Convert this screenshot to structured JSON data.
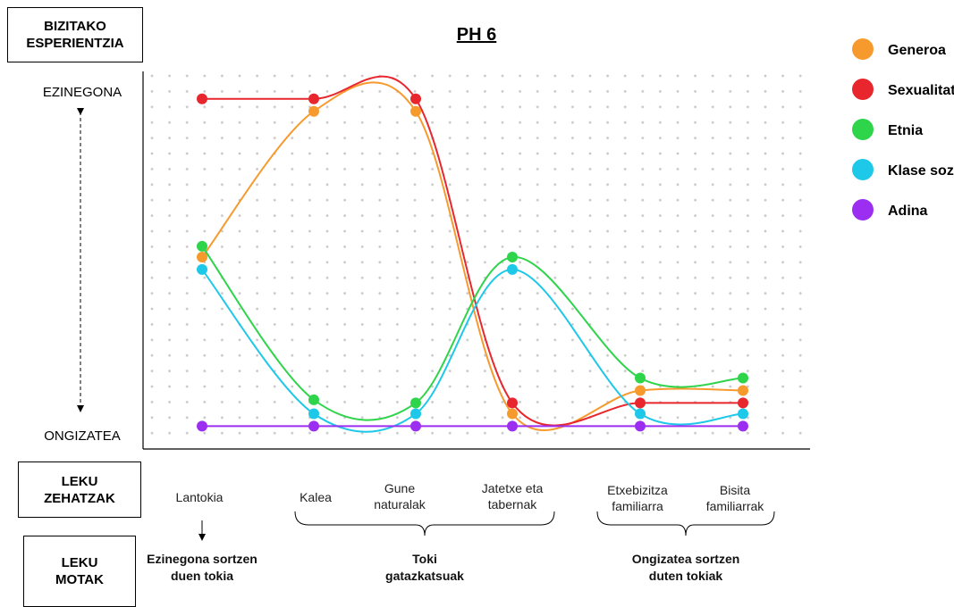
{
  "chart_data": {
    "type": "line",
    "title": "PH 6",
    "y_axis_label": "BIZITAKO ESPERIENTZIA",
    "y_top_label": "EZINEGONA",
    "y_bottom_label": "ONGIZATEA",
    "x_axis_label": "LEKU ZEHATZAK",
    "group_axis_label": "LEKU MOTAK",
    "groups": [
      "Ezinegona sortzen duen tokia",
      "Toki gatazkatsuak",
      "Ongizatea sortzen duten tokiak"
    ],
    "categories": [
      "Lantokia",
      "Kalea",
      "Gune naturalak",
      "Jatetxe eta tabernak",
      "Etxebizitza familiarra",
      "Bisita familiarrak"
    ],
    "ylim": [
      0,
      24
    ],
    "grid": true,
    "legend": "right",
    "series": [
      {
        "name": "Generoa",
        "color": "#f79a2e",
        "values": [
          12.2,
          21.6,
          21.6,
          2.1,
          3.6,
          3.6
        ]
      },
      {
        "name": "Sexualitatea",
        "color": "#e8262e",
        "values": [
          22.4,
          22.4,
          22.4,
          2.8,
          2.8,
          2.8
        ]
      },
      {
        "name": "Etnia",
        "color": "#2ed44a",
        "values": [
          12.9,
          3.0,
          2.8,
          12.2,
          4.4,
          4.4
        ]
      },
      {
        "name": "Klase soziala",
        "color": "#1ec8e8",
        "values": [
          11.4,
          2.1,
          2.1,
          11.4,
          2.1,
          2.1
        ]
      },
      {
        "name": "Adina",
        "color": "#9b2ef0",
        "values": [
          1.3,
          1.3,
          1.3,
          1.3,
          1.3,
          1.3
        ]
      }
    ]
  }
}
